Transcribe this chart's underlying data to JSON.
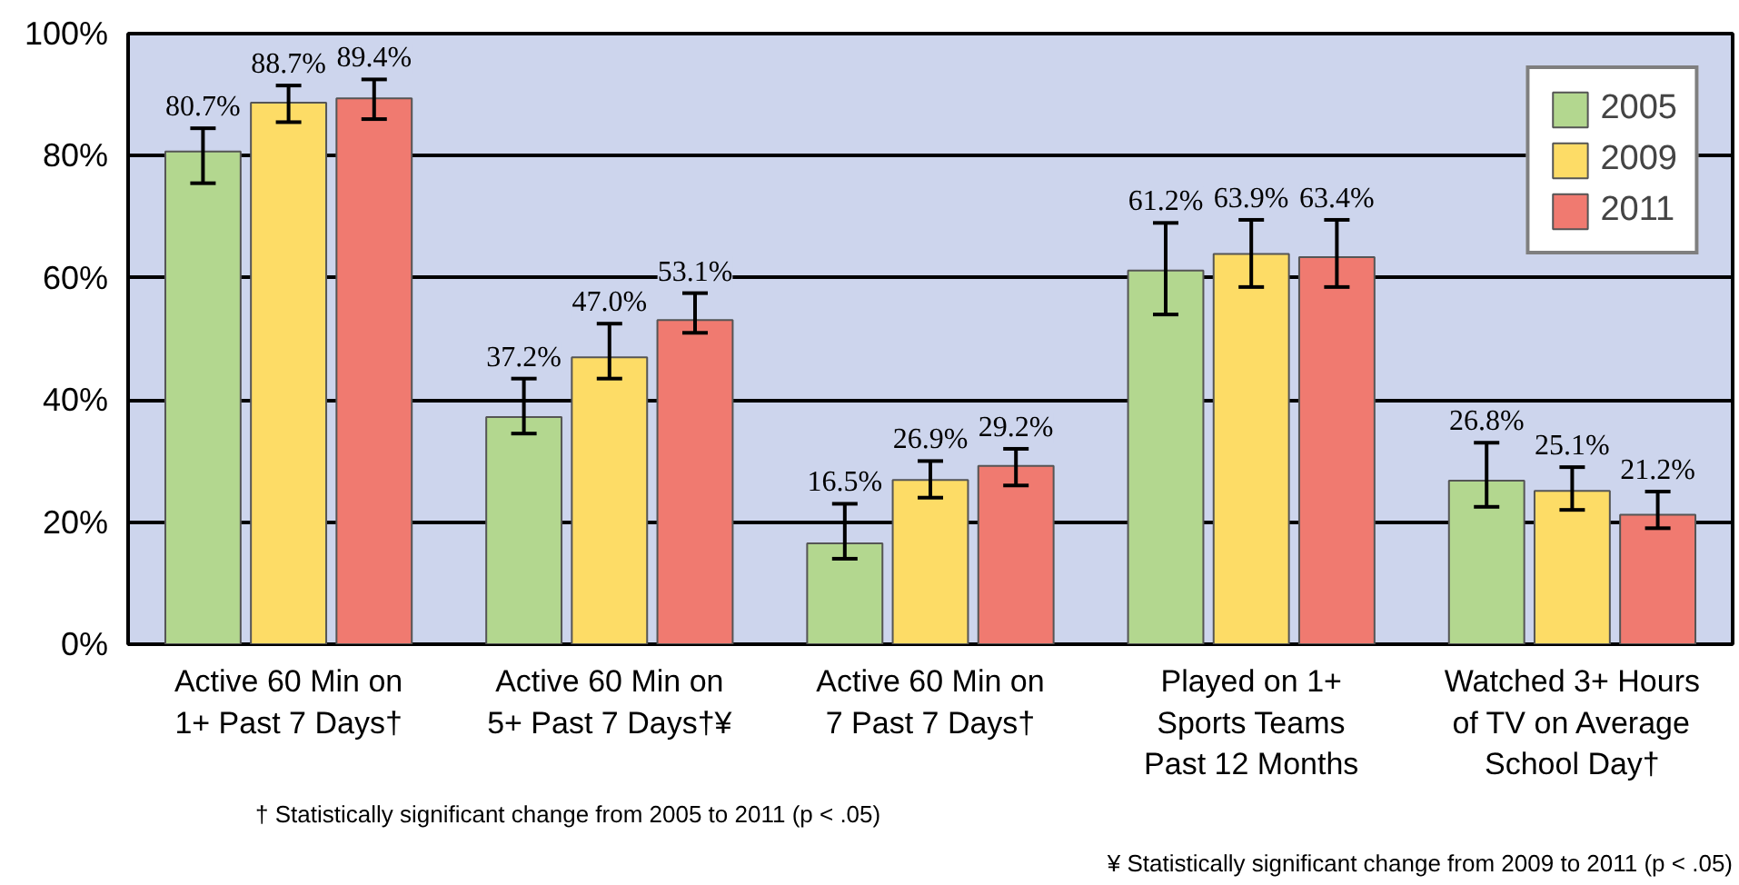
{
  "chart_data": {
    "type": "bar",
    "categories": [
      "Active 60 Min on\n1+ Past 7 Days†",
      "Active 60 Min on\n5+ Past 7 Days†¥",
      "Active 60 Min on\n7 Past 7 Days†",
      "Played on 1+\nSports Teams\nPast 12 Months",
      "Watched 3+ Hours\nof TV on Average\nSchool Day†"
    ],
    "series": [
      {
        "name": "2005",
        "color": "#b3d78f",
        "values": [
          80.7,
          37.2,
          16.5,
          61.2,
          26.8
        ],
        "value_labels": [
          "80.7%",
          "37.2%",
          "16.5%",
          "61.2%",
          "26.8%"
        ],
        "errors": [
          [
            75.5,
            84.5
          ],
          [
            34.5,
            43.5
          ],
          [
            14,
            23
          ],
          [
            54,
            69
          ],
          [
            22.5,
            33
          ]
        ]
      },
      {
        "name": "2009",
        "color": "#fddc66",
        "values": [
          88.7,
          47.0,
          26.9,
          63.9,
          25.1
        ],
        "value_labels": [
          "88.7%",
          "47.0%",
          "26.9%",
          "63.9%",
          "25.1%"
        ],
        "errors": [
          [
            85.5,
            91.5
          ],
          [
            43.5,
            52.5
          ],
          [
            24,
            30
          ],
          [
            58.5,
            69.5
          ],
          [
            22,
            29
          ]
        ]
      },
      {
        "name": "2011",
        "color": "#f07a70",
        "values": [
          89.4,
          53.1,
          29.2,
          63.4,
          21.2
        ],
        "value_labels": [
          "89.4%",
          "53.1%",
          "29.2%",
          "63.4%",
          "21.2%"
        ],
        "errors": [
          [
            86,
            92.5
          ],
          [
            51,
            57.5
          ],
          [
            26,
            32
          ],
          [
            58.5,
            69.5
          ],
          [
            19,
            25
          ]
        ]
      }
    ],
    "ylim": [
      0,
      100
    ],
    "yticks": [
      {
        "value": 0,
        "label": "0%"
      },
      {
        "value": 20,
        "label": "20%"
      },
      {
        "value": 40,
        "label": "40%"
      },
      {
        "value": 60,
        "label": "60%"
      },
      {
        "value": 80,
        "label": "80%"
      },
      {
        "value": 100,
        "label": "100%"
      }
    ],
    "grid": "y",
    "legend": "top right",
    "annotations": [
      "† Statistically significant change from 2005 to 2011 (p < .05)",
      "¥ Statistically significant change from 2009 to 2011 (p < .05)"
    ]
  }
}
